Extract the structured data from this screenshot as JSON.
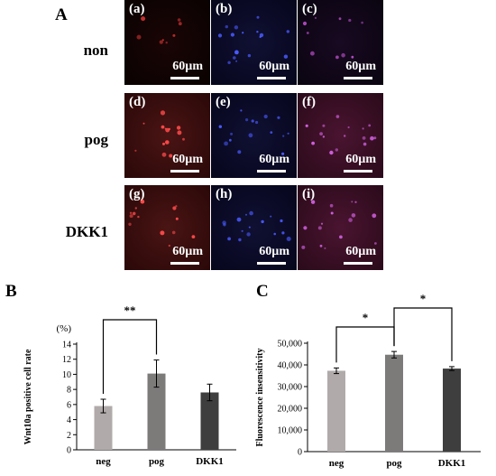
{
  "panel_A": {
    "letter": "A",
    "rows": [
      {
        "label": "non",
        "tiles": [
          {
            "sub": "(a)",
            "scale": "60µm",
            "tone": "red-dark"
          },
          {
            "sub": "(b)",
            "scale": "60µm",
            "tone": "blue"
          },
          {
            "sub": "(c)",
            "scale": "60µm",
            "tone": "merge-dark"
          }
        ]
      },
      {
        "label": "pog",
        "tiles": [
          {
            "sub": "(d)",
            "scale": "60µm",
            "tone": "red"
          },
          {
            "sub": "(e)",
            "scale": "60µm",
            "tone": "blue"
          },
          {
            "sub": "(f)",
            "scale": "60µm",
            "tone": "merge"
          }
        ]
      },
      {
        "label": "DKK1",
        "tiles": [
          {
            "sub": "(g)",
            "scale": "60µm",
            "tone": "red"
          },
          {
            "sub": "(h)",
            "scale": "60µm",
            "tone": "blue"
          },
          {
            "sub": "(i)",
            "scale": "60µm",
            "tone": "merge"
          }
        ]
      }
    ]
  },
  "panel_B": {
    "letter": "B"
  },
  "panel_C": {
    "letter": "C"
  },
  "chart_data": [
    {
      "type": "bar",
      "ylabel": "Wnt10a positive cell rate",
      "unit": "(%)",
      "categories": [
        "neg",
        "pog",
        "DKK1"
      ],
      "values": [
        5.8,
        10.1,
        7.6
      ],
      "errors": [
        0.9,
        1.8,
        1.1
      ],
      "colors": [
        "#b1aaaa",
        "#7d7a7a",
        "#3e3e3e"
      ],
      "ylim": [
        0,
        14
      ],
      "yticks": [
        "0",
        "2",
        "4",
        "6",
        "8",
        "10",
        "12",
        "14"
      ],
      "significance": [
        {
          "from": 0,
          "to": 1,
          "label": "**"
        }
      ]
    },
    {
      "type": "bar",
      "ylabel": "Fluorescence insensitivity",
      "categories": [
        "neg",
        "pog",
        "DKK1"
      ],
      "values": [
        37300,
        44700,
        38300
      ],
      "errors": [
        1300,
        1500,
        900
      ],
      "colors": [
        "#b1aaaa",
        "#7d7a7a",
        "#3e3e3e"
      ],
      "ylim": [
        0,
        50000
      ],
      "yticks": [
        "0",
        "10,000",
        "20,000",
        "30,000",
        "40,000",
        "50,000"
      ],
      "significance": [
        {
          "from": 0,
          "to": 1,
          "label": "*"
        },
        {
          "from": 1,
          "to": 2,
          "label": "*"
        }
      ]
    }
  ]
}
